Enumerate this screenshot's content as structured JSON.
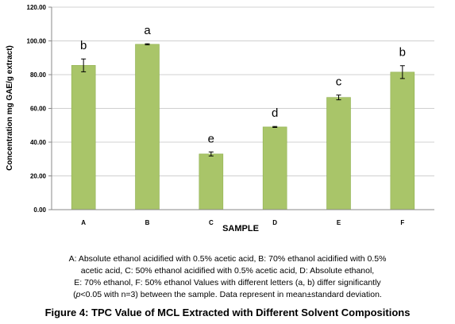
{
  "chart_data": {
    "type": "bar",
    "categories": [
      "A",
      "B",
      "C",
      "D",
      "E",
      "F"
    ],
    "values": [
      85.5,
      98.0,
      33.0,
      49.0,
      66.5,
      81.5
    ],
    "errors": [
      3.8,
      0.3,
      1.2,
      0.3,
      1.4,
      3.8
    ],
    "significance_labels": [
      "b",
      "a",
      "e",
      "d",
      "c",
      "b"
    ],
    "xlabel": "SAMPLE",
    "ylabel": "Concentration mg GAE/g extract)",
    "ylim": [
      0,
      120
    ],
    "yticks": [
      "0.00",
      "20.00",
      "40.00",
      "60.00",
      "80.00",
      "100.00",
      "120.00"
    ],
    "ytick_values": [
      0,
      20,
      40,
      60,
      80,
      100,
      120
    ],
    "grid": true,
    "legend": "none",
    "colors": {
      "bar_fill": "#a9c569",
      "bar_edge": "#90b050",
      "grid": "#d0d0d0",
      "axis": "#888888"
    }
  },
  "caption": {
    "line1": "A: Absolute ethanol acidified  with 0.5% acetic acid,  B: 70% ethanol acidified  with 0.5%",
    "line2": "acetic acid, C: 50% ethanol acidified  with 0.5% acetic acid, D: Absolute ethanol,",
    "line3": "E: 70% ethanol, F: 50% ethanol Values with different letters (a, b) differ significantly",
    "line4_open": "(",
    "line4_p": "p",
    "line4_rest": "<0.05 with n=3) between the sample. Data represent in mean±standard deviation."
  },
  "figure_title": "Figure 4: TPC Value of MCL Extracted with Different Solvent Compositions"
}
